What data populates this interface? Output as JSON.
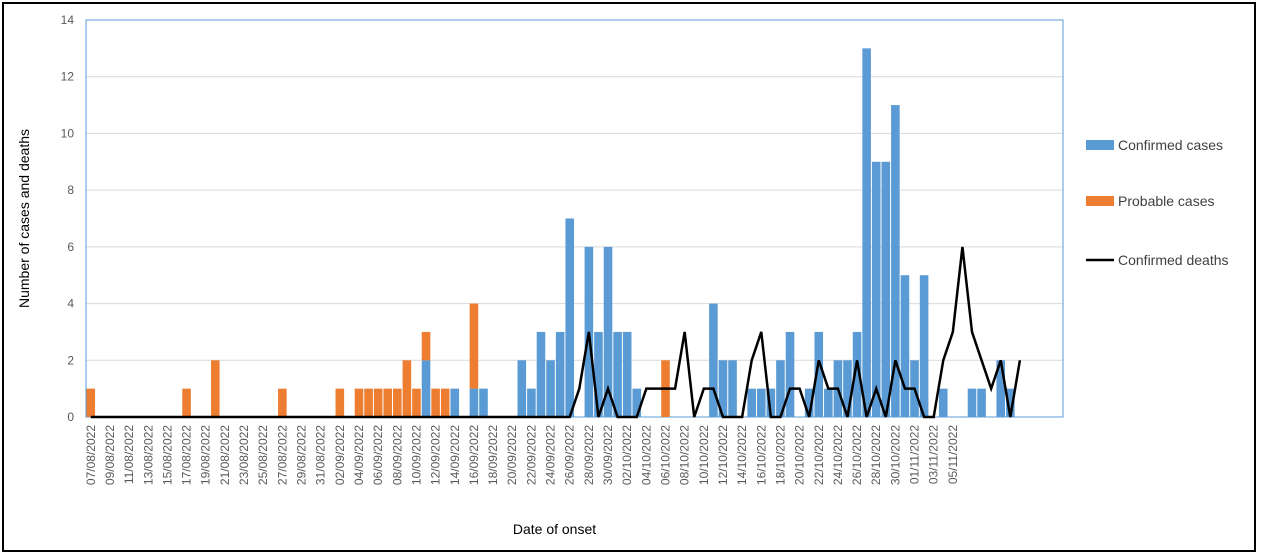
{
  "chart_data": {
    "type": "bar",
    "title": "",
    "xlabel": "Date of onset",
    "ylabel": "Number of cases and deaths",
    "ylim": [
      0,
      14
    ],
    "yticks": [
      0,
      2,
      4,
      6,
      8,
      10,
      12,
      14
    ],
    "grid": true,
    "legend_position": "right",
    "start_date": "07/08/2022",
    "x_tick_labels": [
      "07/08/2022",
      "09/08/2022",
      "11/08/2022",
      "13/08/2022",
      "15/08/2022",
      "17/08/2022",
      "19/08/2022",
      "21/08/2022",
      "23/08/2022",
      "25/08/2022",
      "27/08/2022",
      "29/08/2022",
      "31/08/2022",
      "02/09/2022",
      "04/09/2022",
      "06/09/2022",
      "08/09/2022",
      "10/09/2022",
      "12/09/2022",
      "14/09/2022",
      "16/09/2022",
      "18/09/2022",
      "20/09/2022",
      "22/09/2022",
      "24/09/2022",
      "26/09/2022",
      "28/09/2022",
      "30/09/2022",
      "02/10/2022",
      "04/10/2022",
      "06/10/2022",
      "08/10/2022",
      "10/10/2022",
      "12/10/2022",
      "14/10/2022",
      "16/10/2022",
      "18/10/2022",
      "20/10/2022",
      "22/10/2022",
      "24/10/2022",
      "26/10/2022",
      "28/10/2022",
      "30/10/2022",
      "01/11/2022",
      "03/11/2022",
      "05/11/2022"
    ],
    "series": [
      {
        "name": "Confirmed cases",
        "kind": "stacked-bar",
        "color": "#5b9bd5",
        "values": [
          0,
          0,
          0,
          0,
          0,
          0,
          0,
          0,
          0,
          0,
          0,
          0,
          0,
          0,
          0,
          0,
          0,
          0,
          0,
          0,
          0,
          0,
          0,
          0,
          0,
          0,
          0,
          0,
          0,
          0,
          0,
          0,
          0,
          0,
          0,
          2,
          0,
          0,
          1,
          0,
          1,
          1,
          0,
          0,
          0,
          2,
          1,
          3,
          2,
          3,
          7,
          0,
          6,
          3,
          6,
          3,
          3,
          1,
          0,
          0,
          0,
          0,
          0,
          0,
          0,
          4,
          2,
          2,
          0,
          1,
          1,
          1,
          2,
          3,
          0,
          1,
          3,
          1,
          2,
          2,
          3,
          13,
          9,
          9,
          11,
          5,
          2,
          5,
          0,
          1,
          0,
          0,
          1,
          1,
          0,
          2,
          1,
          0,
          0,
          0,
          0,
          0
        ]
      },
      {
        "name": "Probable cases",
        "kind": "stacked-bar",
        "color": "#ed7d31",
        "values": [
          1,
          0,
          0,
          0,
          0,
          0,
          0,
          0,
          0,
          0,
          1,
          0,
          0,
          2,
          0,
          0,
          0,
          0,
          0,
          0,
          1,
          0,
          0,
          0,
          0,
          0,
          1,
          0,
          1,
          1,
          1,
          1,
          1,
          2,
          1,
          1,
          1,
          1,
          0,
          0,
          3,
          0,
          0,
          0,
          0,
          0,
          0,
          0,
          0,
          0,
          0,
          0,
          0,
          0,
          0,
          0,
          0,
          0,
          0,
          0,
          2,
          0,
          0,
          0,
          0,
          0,
          0,
          0,
          0,
          0,
          0,
          0,
          0,
          0,
          0,
          0,
          0,
          0,
          0,
          0,
          0,
          0,
          0,
          0,
          0,
          0,
          0,
          0,
          0,
          0,
          0,
          0,
          0,
          0,
          0,
          0,
          0,
          0,
          0,
          0,
          0,
          0
        ]
      },
      {
        "name": "Confirmed deaths",
        "kind": "line",
        "color": "#000000",
        "values": [
          0,
          0,
          0,
          0,
          0,
          0,
          0,
          0,
          0,
          0,
          0,
          0,
          0,
          0,
          0,
          0,
          0,
          0,
          0,
          0,
          0,
          0,
          0,
          0,
          0,
          0,
          0,
          0,
          0,
          0,
          0,
          0,
          0,
          0,
          0,
          0,
          0,
          0,
          0,
          0,
          0,
          0,
          0,
          0,
          0,
          0,
          0,
          0,
          0,
          0,
          0,
          1,
          3,
          0,
          1,
          0,
          0,
          0,
          1,
          1,
          1,
          1,
          3,
          0,
          1,
          1,
          0,
          0,
          0,
          2,
          3,
          0,
          0,
          1,
          1,
          0,
          2,
          1,
          1,
          0,
          2,
          0,
          1,
          0,
          2,
          1,
          1,
          0,
          0,
          2,
          3,
          6,
          3,
          2,
          1,
          2,
          0,
          2
        ]
      }
    ]
  },
  "legend": [
    {
      "label": "Confirmed cases",
      "color": "#5b9bd5",
      "type": "box"
    },
    {
      "label": "Probable cases",
      "color": "#ed7d31",
      "type": "box"
    },
    {
      "label": "Confirmed deaths",
      "color": "#000000",
      "type": "line"
    }
  ]
}
